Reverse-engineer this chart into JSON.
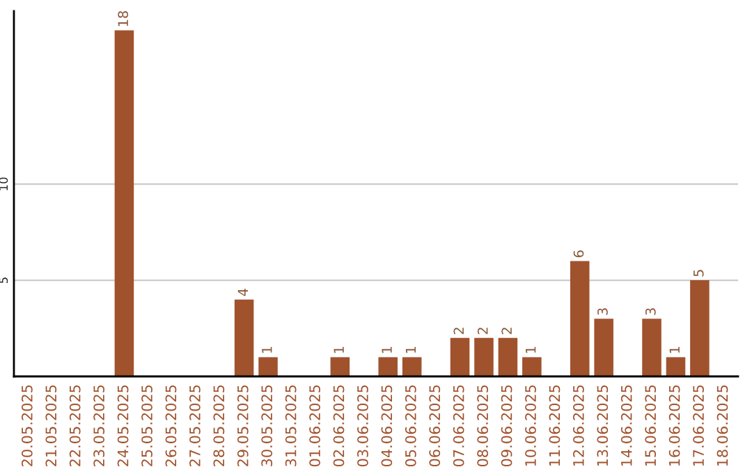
{
  "chart_data": {
    "type": "bar",
    "categories": [
      "20.05.2025",
      "21.05.2025",
      "22.05.2025",
      "23.05.2025",
      "24.05.2025",
      "25.05.2025",
      "26.05.2025",
      "27.05.2025",
      "28.05.2025",
      "29.05.2025",
      "30.05.2025",
      "31.05.2025",
      "01.06.2025",
      "02.06.2025",
      "03.06.2025",
      "04.06.2025",
      "05.06.2025",
      "06.06.2025",
      "07.06.2025",
      "08.06.2025",
      "09.06.2025",
      "10.06.2025",
      "11.06.2025",
      "12.06.2025",
      "13.06.2025",
      "14.06.2025",
      "15.06.2025",
      "16.06.2025",
      "17.06.2025",
      "18.06.2025"
    ],
    "values": [
      null,
      null,
      null,
      null,
      18,
      null,
      null,
      null,
      null,
      4,
      1,
      null,
      null,
      1,
      null,
      1,
      1,
      null,
      2,
      2,
      2,
      1,
      null,
      6,
      3,
      null,
      3,
      1,
      5,
      null
    ],
    "color": "#a0522d",
    "ylim": [
      0,
      19
    ],
    "yticks": [
      5,
      10
    ],
    "grid": "y",
    "data_labels": true
  }
}
